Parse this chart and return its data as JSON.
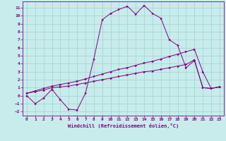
{
  "xlabel": "Windchill (Refroidissement éolien,°C)",
  "bg_color": "#c8ecec",
  "grid_color": "#aad4d4",
  "line_color": "#800080",
  "xlim": [
    -0.5,
    23.5
  ],
  "ylim": [
    -2.5,
    11.8
  ],
  "xticks": [
    0,
    1,
    2,
    3,
    4,
    5,
    6,
    7,
    8,
    9,
    10,
    11,
    12,
    13,
    14,
    15,
    16,
    17,
    18,
    19,
    20,
    21,
    22,
    23
  ],
  "yticks": [
    -2,
    -1,
    0,
    1,
    2,
    3,
    4,
    5,
    6,
    7,
    8,
    9,
    10,
    11
  ],
  "series1_x": [
    0,
    1,
    2,
    3,
    4,
    5,
    6,
    7,
    8,
    9,
    10,
    11,
    12,
    13,
    14,
    15,
    16,
    17,
    18,
    19,
    20,
    21,
    22,
    23
  ],
  "series1_y": [
    0.0,
    -1.0,
    -0.3,
    0.8,
    -0.5,
    -1.7,
    -1.8,
    0.3,
    4.6,
    9.5,
    10.3,
    10.8,
    11.2,
    10.2,
    11.3,
    10.3,
    9.7,
    7.0,
    6.3,
    3.5,
    4.4,
    1.0,
    0.9,
    1.1
  ],
  "series2_x": [
    0,
    1,
    2,
    3,
    4,
    5,
    6,
    7,
    8,
    9,
    10,
    11,
    12,
    13,
    14,
    15,
    16,
    17,
    18,
    19,
    20,
    21,
    22,
    23
  ],
  "series2_y": [
    0.3,
    0.5,
    0.7,
    1.0,
    1.1,
    1.2,
    1.4,
    1.6,
    1.8,
    2.0,
    2.2,
    2.4,
    2.6,
    2.8,
    3.0,
    3.1,
    3.3,
    3.5,
    3.7,
    3.9,
    4.5,
    1.0,
    0.9,
    1.1
  ],
  "series3_x": [
    0,
    1,
    2,
    3,
    4,
    5,
    6,
    7,
    8,
    9,
    10,
    11,
    12,
    13,
    14,
    15,
    16,
    17,
    18,
    19,
    20,
    21,
    22,
    23
  ],
  "series3_y": [
    0.3,
    0.6,
    0.9,
    1.2,
    1.4,
    1.6,
    1.8,
    2.1,
    2.4,
    2.7,
    3.0,
    3.3,
    3.5,
    3.8,
    4.1,
    4.3,
    4.6,
    4.9,
    5.2,
    5.5,
    5.8,
    3.0,
    0.9,
    1.1
  ]
}
